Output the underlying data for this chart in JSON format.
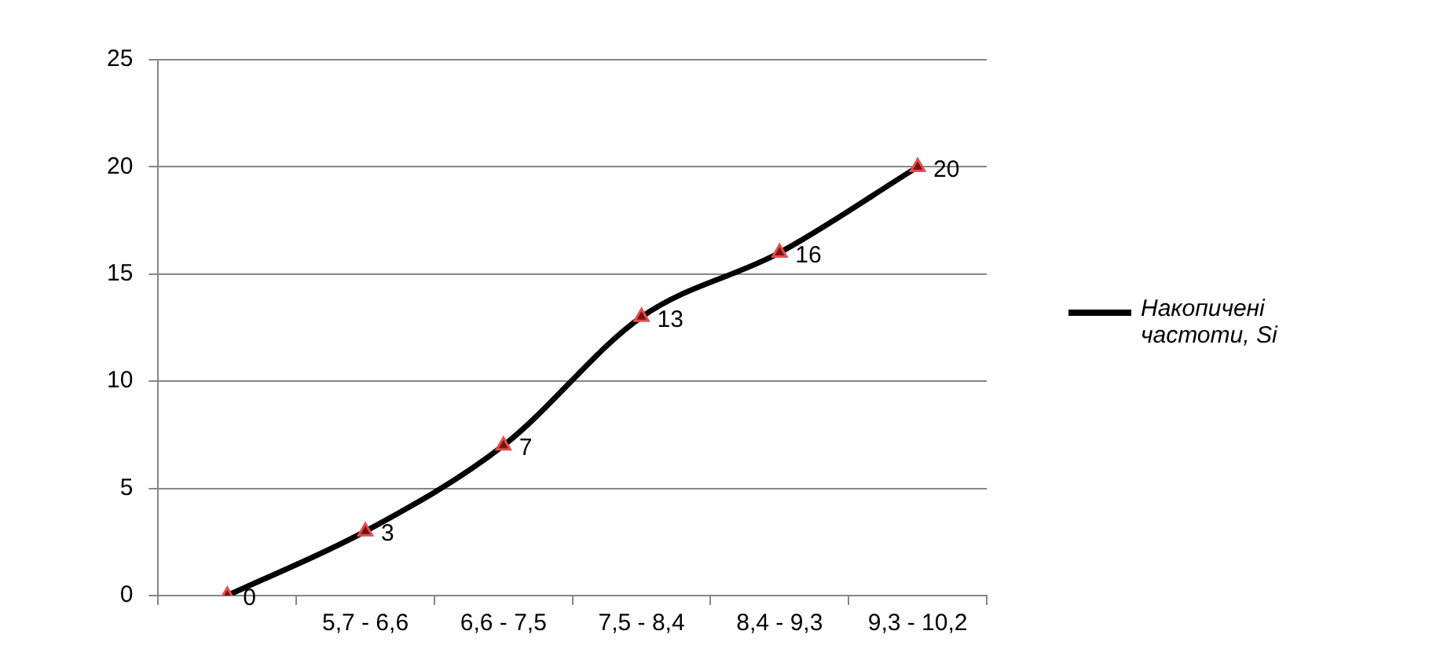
{
  "chart_data": {
    "type": "line",
    "categories": [
      null,
      "5,7 - 6,6",
      "6,6 - 7,5",
      "7,5 - 8,4",
      "8,4 - 9,3",
      "9,3 - 10,2"
    ],
    "series": [
      {
        "name": "Накопичені частоти, Si",
        "color": "#000000",
        "values": [
          0,
          3,
          7,
          13,
          16,
          20
        ]
      }
    ],
    "ylim": [
      0,
      25
    ],
    "yticks": [
      0,
      5,
      10,
      15,
      20,
      25
    ],
    "grid": "y",
    "legend": "right",
    "marker": "triangle",
    "line_style": "solid",
    "data_labels": true
  }
}
